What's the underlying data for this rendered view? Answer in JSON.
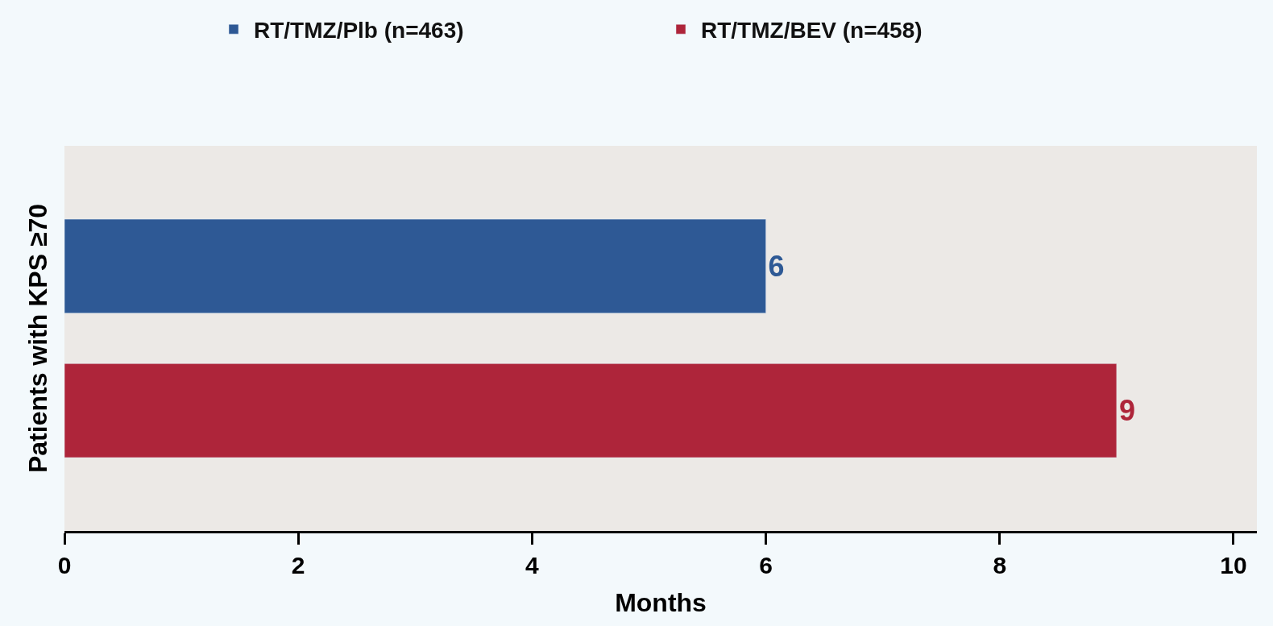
{
  "chart_data": {
    "type": "bar",
    "orientation": "horizontal",
    "categories": [
      null
    ],
    "series": [
      {
        "name": "RT/TMZ/Plb (n=463)",
        "color": "#2e5995",
        "values": [
          6
        ]
      },
      {
        "name": "RT/TMZ/BEV (n=458)",
        "color": "#ae253a",
        "values": [
          9
        ]
      }
    ],
    "xlabel": "Months",
    "ylabel": "Patients with KPS ≥70",
    "xlim": [
      0,
      10.2
    ],
    "xticks": [
      0,
      2,
      4,
      6,
      8,
      10
    ],
    "data_labels": true,
    "legend": "top",
    "grid": false
  }
}
